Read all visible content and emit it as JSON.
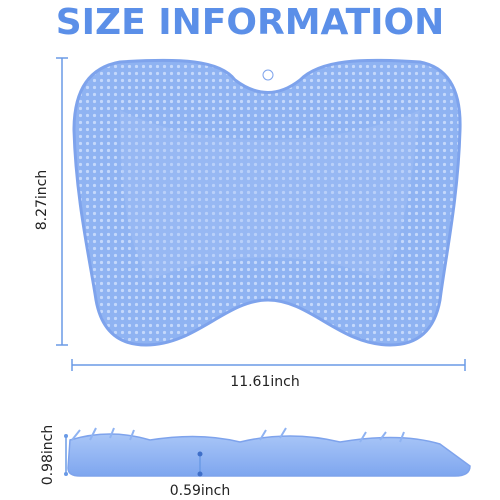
{
  "header": {
    "title": "SIZE INFORMATION"
  },
  "dimensions": {
    "height": "8.27inch",
    "width": "11.61inch",
    "thickness": "0.98inch",
    "base_thickness": "0.59inch"
  }
}
